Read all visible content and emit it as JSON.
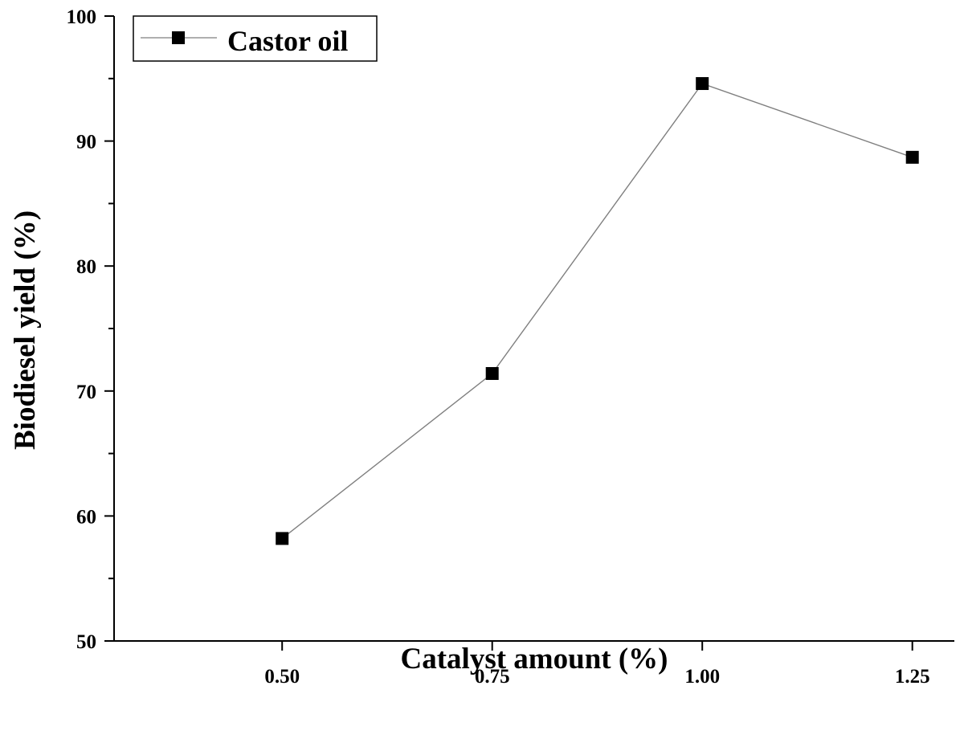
{
  "chart_data": {
    "type": "line",
    "title": "",
    "xlabel": "Catalyst amount (%)",
    "ylabel": "Biodiesel yield (%)",
    "xlim": [
      0.3,
      1.3
    ],
    "ylim": [
      50,
      100
    ],
    "grid": false,
    "legend_position": "top-left",
    "x_tick_labels": [
      "0.50",
      "0.75",
      "1.00",
      "1.25"
    ],
    "y_tick_labels": [
      "50",
      "60",
      "70",
      "80",
      "90",
      "100"
    ],
    "x_ticks": [
      0.5,
      0.75,
      1.0,
      1.25
    ],
    "y_ticks": [
      50,
      60,
      70,
      80,
      90,
      100
    ],
    "series": [
      {
        "name": "Castor oil",
        "x": [
          0.5,
          0.75,
          1.0,
          1.25
        ],
        "y": [
          58.2,
          71.4,
          94.6,
          88.7
        ],
        "marker": "square",
        "line_color": "#7f7f7f",
        "marker_color": "#000000"
      }
    ]
  }
}
